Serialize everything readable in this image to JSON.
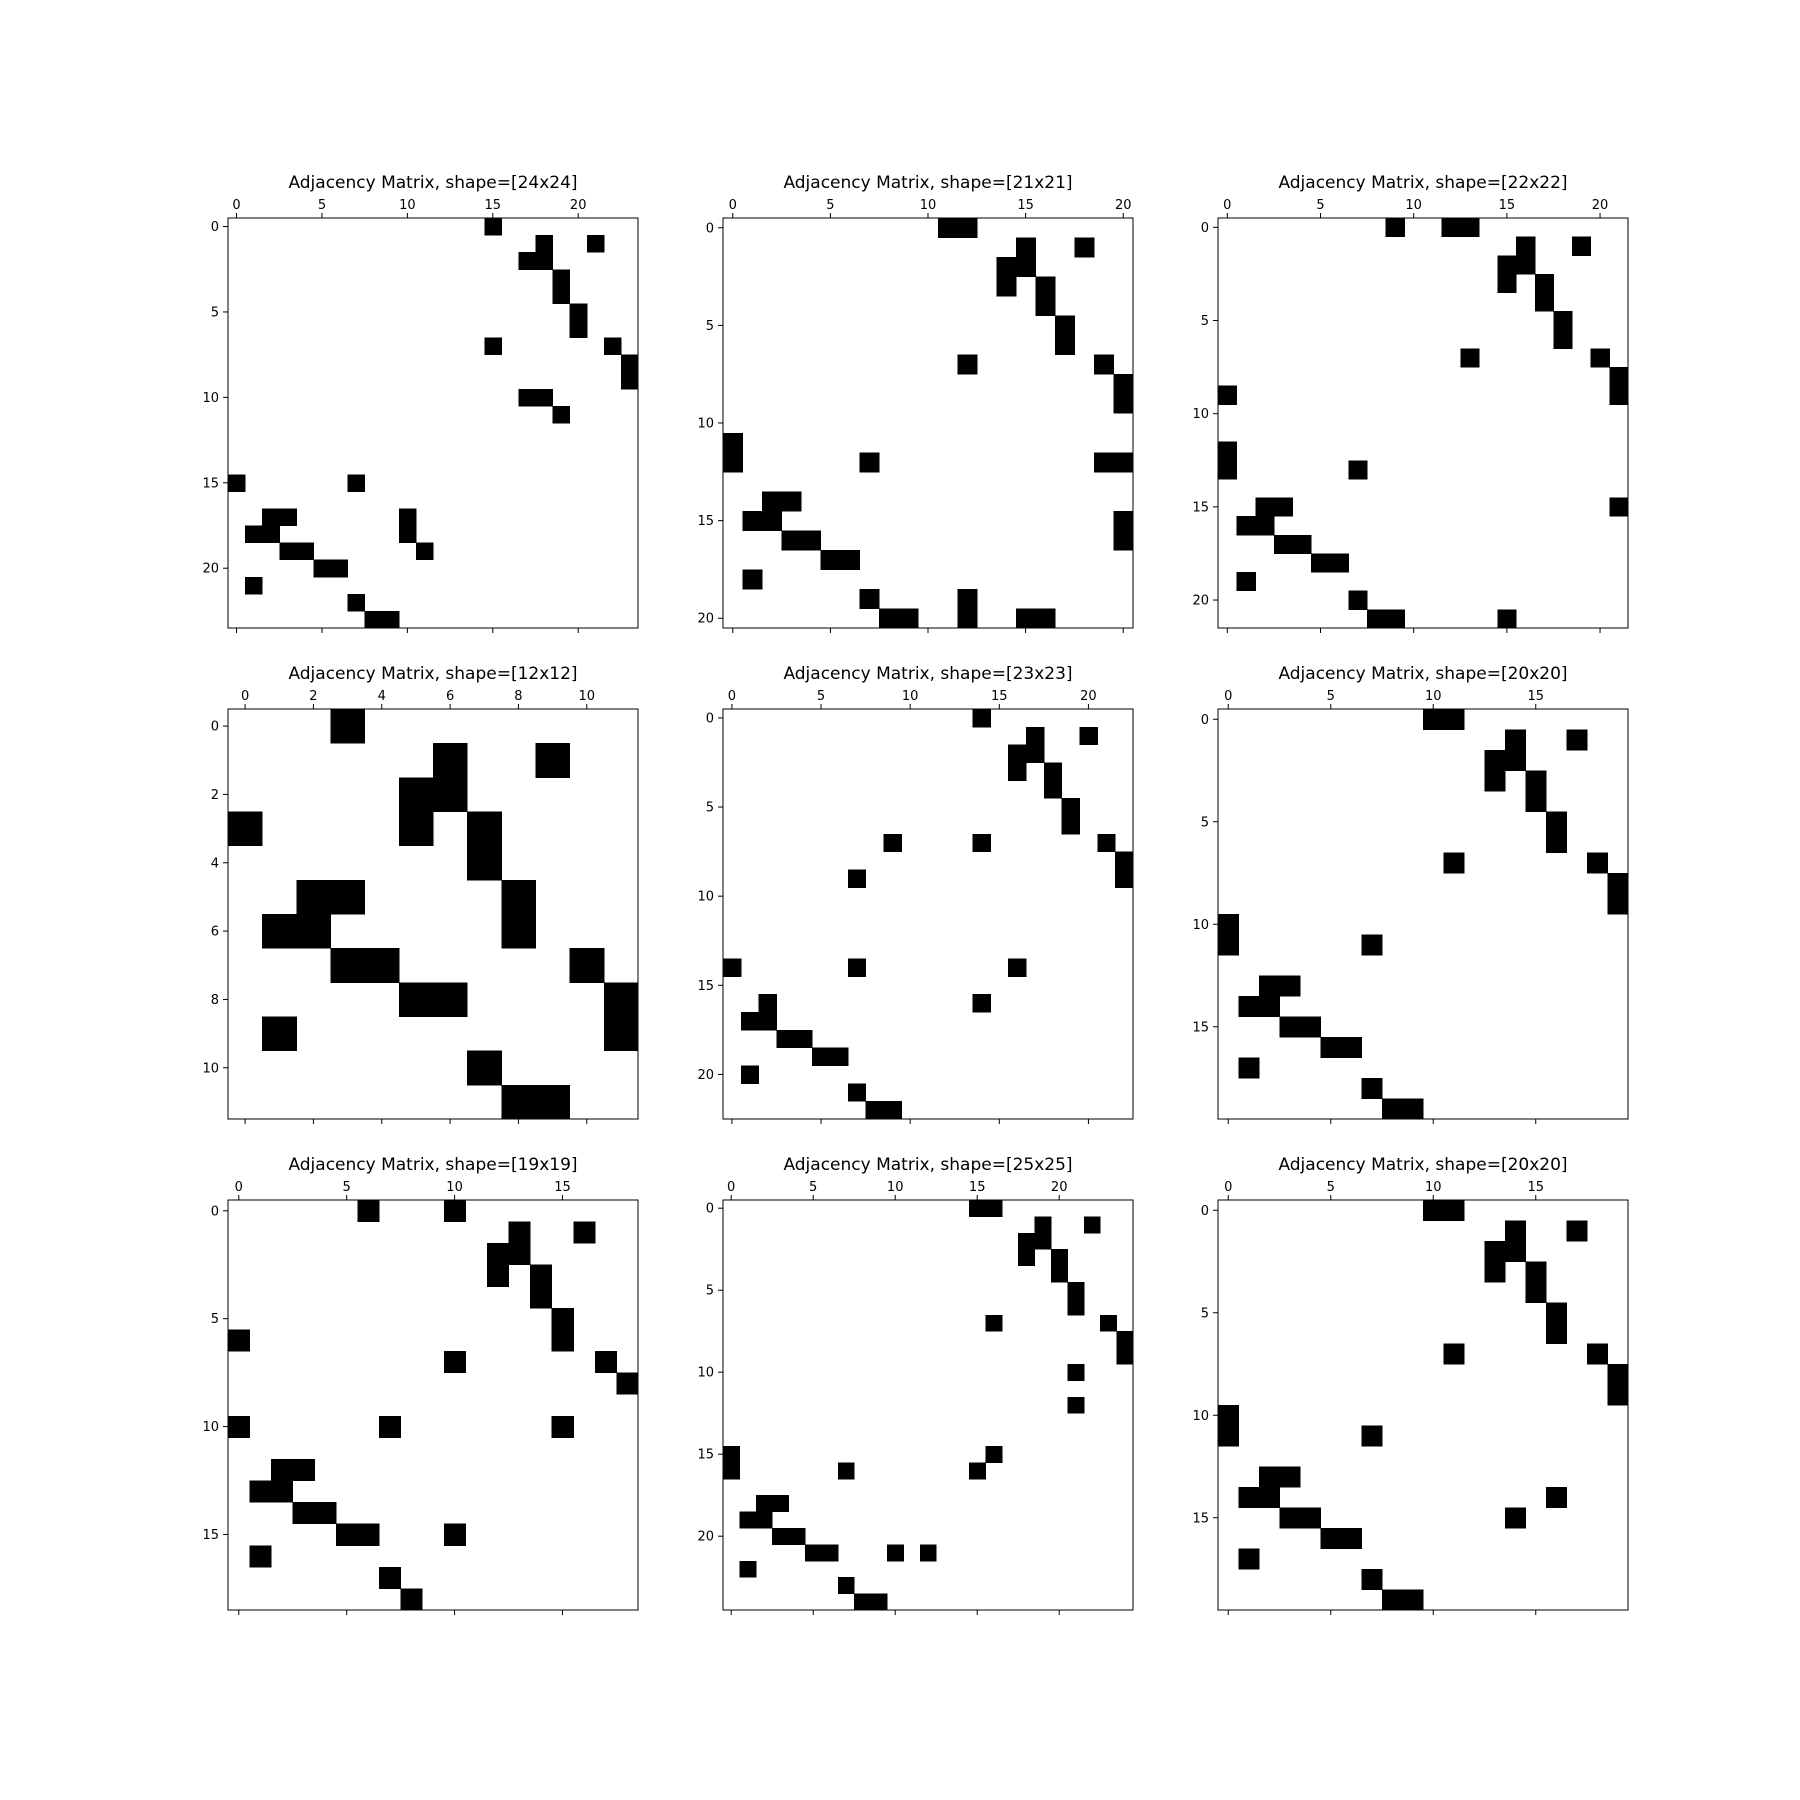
{
  "chart_data": [
    {
      "type": "heatmap",
      "title": "Adjacency Matrix, shape=[24x24]",
      "n": 24,
      "xticks": [
        0,
        5,
        10,
        15,
        20
      ],
      "yticks": [
        0,
        5,
        10,
        15,
        20
      ],
      "colors": {
        "zero": "#ffffff",
        "one": "#000000"
      },
      "cells": [
        [
          0,
          15
        ],
        [
          1,
          18
        ],
        [
          1,
          21
        ],
        [
          2,
          17
        ],
        [
          2,
          18
        ],
        [
          3,
          19
        ],
        [
          4,
          19
        ],
        [
          5,
          20
        ],
        [
          6,
          20
        ],
        [
          7,
          15
        ],
        [
          7,
          22
        ],
        [
          8,
          23
        ],
        [
          9,
          23
        ],
        [
          10,
          17
        ],
        [
          10,
          18
        ],
        [
          11,
          19
        ],
        [
          15,
          0
        ],
        [
          15,
          7
        ],
        [
          17,
          2
        ],
        [
          17,
          3
        ],
        [
          17,
          10
        ],
        [
          18,
          1
        ],
        [
          18,
          2
        ],
        [
          18,
          10
        ],
        [
          19,
          3
        ],
        [
          19,
          4
        ],
        [
          19,
          11
        ],
        [
          20,
          5
        ],
        [
          20,
          6
        ],
        [
          21,
          1
        ],
        [
          22,
          7
        ],
        [
          23,
          8
        ],
        [
          23,
          9
        ]
      ]
    },
    {
      "type": "heatmap",
      "title": "Adjacency Matrix, shape=[21x21]",
      "n": 21,
      "xticks": [
        0,
        5,
        10,
        15,
        20
      ],
      "yticks": [
        0,
        5,
        10,
        15,
        20
      ],
      "colors": {
        "zero": "#ffffff",
        "one": "#000000"
      },
      "cells": [
        [
          0,
          11
        ],
        [
          0,
          12
        ],
        [
          1,
          15
        ],
        [
          1,
          18
        ],
        [
          2,
          14
        ],
        [
          2,
          15
        ],
        [
          3,
          14
        ],
        [
          3,
          16
        ],
        [
          4,
          16
        ],
        [
          5,
          17
        ],
        [
          6,
          17
        ],
        [
          7,
          12
        ],
        [
          7,
          19
        ],
        [
          8,
          20
        ],
        [
          9,
          20
        ],
        [
          11,
          0
        ],
        [
          12,
          0
        ],
        [
          12,
          7
        ],
        [
          12,
          19
        ],
        [
          12,
          20
        ],
        [
          14,
          2
        ],
        [
          14,
          3
        ],
        [
          15,
          1
        ],
        [
          15,
          2
        ],
        [
          15,
          20
        ],
        [
          16,
          3
        ],
        [
          16,
          4
        ],
        [
          16,
          20
        ],
        [
          17,
          5
        ],
        [
          17,
          6
        ],
        [
          18,
          1
        ],
        [
          19,
          7
        ],
        [
          19,
          12
        ],
        [
          20,
          8
        ],
        [
          20,
          9
        ],
        [
          20,
          12
        ],
        [
          20,
          15
        ],
        [
          20,
          16
        ]
      ]
    },
    {
      "type": "heatmap",
      "title": "Adjacency Matrix, shape=[22x22]",
      "n": 22,
      "xticks": [
        0,
        5,
        10,
        15,
        20
      ],
      "yticks": [
        0,
        5,
        10,
        15,
        20
      ],
      "colors": {
        "zero": "#ffffff",
        "one": "#000000"
      },
      "cells": [
        [
          0,
          9
        ],
        [
          0,
          12
        ],
        [
          0,
          13
        ],
        [
          1,
          16
        ],
        [
          1,
          19
        ],
        [
          2,
          15
        ],
        [
          2,
          16
        ],
        [
          3,
          15
        ],
        [
          3,
          17
        ],
        [
          4,
          17
        ],
        [
          5,
          18
        ],
        [
          6,
          18
        ],
        [
          7,
          13
        ],
        [
          7,
          20
        ],
        [
          8,
          21
        ],
        [
          9,
          0
        ],
        [
          9,
          21
        ],
        [
          12,
          0
        ],
        [
          13,
          0
        ],
        [
          13,
          7
        ],
        [
          15,
          2
        ],
        [
          15,
          3
        ],
        [
          15,
          21
        ],
        [
          16,
          1
        ],
        [
          16,
          2
        ],
        [
          17,
          3
        ],
        [
          17,
          4
        ],
        [
          18,
          5
        ],
        [
          18,
          6
        ],
        [
          19,
          1
        ],
        [
          20,
          7
        ],
        [
          21,
          8
        ],
        [
          21,
          9
        ],
        [
          21,
          15
        ]
      ]
    },
    {
      "type": "heatmap",
      "title": "Adjacency Matrix, shape=[12x12]",
      "n": 12,
      "xticks": [
        0,
        2,
        4,
        6,
        8,
        10
      ],
      "yticks": [
        0,
        2,
        4,
        6,
        8,
        10
      ],
      "colors": {
        "zero": "#ffffff",
        "one": "#000000"
      },
      "cells": [
        [
          0,
          3
        ],
        [
          1,
          6
        ],
        [
          1,
          9
        ],
        [
          2,
          5
        ],
        [
          2,
          6
        ],
        [
          3,
          0
        ],
        [
          3,
          5
        ],
        [
          3,
          7
        ],
        [
          4,
          7
        ],
        [
          5,
          2
        ],
        [
          5,
          3
        ],
        [
          5,
          8
        ],
        [
          6,
          1
        ],
        [
          6,
          2
        ],
        [
          6,
          8
        ],
        [
          7,
          3
        ],
        [
          7,
          4
        ],
        [
          7,
          10
        ],
        [
          8,
          5
        ],
        [
          8,
          6
        ],
        [
          8,
          11
        ],
        [
          9,
          1
        ],
        [
          9,
          11
        ],
        [
          10,
          7
        ],
        [
          11,
          8
        ],
        [
          11,
          9
        ]
      ]
    },
    {
      "type": "heatmap",
      "title": "Adjacency Matrix, shape=[23x23]",
      "n": 23,
      "xticks": [
        0,
        5,
        10,
        15,
        20
      ],
      "yticks": [
        0,
        5,
        10,
        15,
        20
      ],
      "colors": {
        "zero": "#ffffff",
        "one": "#000000"
      },
      "cells": [
        [
          0,
          14
        ],
        [
          1,
          17
        ],
        [
          1,
          20
        ],
        [
          2,
          16
        ],
        [
          2,
          17
        ],
        [
          3,
          16
        ],
        [
          3,
          18
        ],
        [
          4,
          18
        ],
        [
          5,
          19
        ],
        [
          6,
          19
        ],
        [
          7,
          9
        ],
        [
          7,
          14
        ],
        [
          7,
          21
        ],
        [
          8,
          22
        ],
        [
          9,
          7
        ],
        [
          9,
          22
        ],
        [
          14,
          0
        ],
        [
          14,
          7
        ],
        [
          14,
          16
        ],
        [
          16,
          2
        ],
        [
          16,
          14
        ],
        [
          17,
          1
        ],
        [
          17,
          2
        ],
        [
          18,
          3
        ],
        [
          18,
          4
        ],
        [
          19,
          5
        ],
        [
          19,
          6
        ],
        [
          20,
          1
        ],
        [
          21,
          7
        ],
        [
          22,
          8
        ],
        [
          22,
          9
        ]
      ]
    },
    {
      "type": "heatmap",
      "title": "Adjacency Matrix, shape=[20x20]",
      "n": 20,
      "xticks": [
        0,
        5,
        10,
        15
      ],
      "yticks": [
        0,
        5,
        10,
        15
      ],
      "colors": {
        "zero": "#ffffff",
        "one": "#000000"
      },
      "cells": [
        [
          0,
          10
        ],
        [
          0,
          11
        ],
        [
          1,
          14
        ],
        [
          1,
          17
        ],
        [
          2,
          13
        ],
        [
          2,
          14
        ],
        [
          3,
          13
        ],
        [
          3,
          15
        ],
        [
          4,
          15
        ],
        [
          5,
          16
        ],
        [
          6,
          16
        ],
        [
          7,
          11
        ],
        [
          7,
          18
        ],
        [
          8,
          19
        ],
        [
          9,
          19
        ],
        [
          10,
          0
        ],
        [
          11,
          0
        ],
        [
          11,
          7
        ],
        [
          13,
          2
        ],
        [
          13,
          3
        ],
        [
          14,
          1
        ],
        [
          14,
          2
        ],
        [
          15,
          3
        ],
        [
          15,
          4
        ],
        [
          16,
          5
        ],
        [
          16,
          6
        ],
        [
          17,
          1
        ],
        [
          18,
          7
        ],
        [
          19,
          8
        ],
        [
          19,
          9
        ]
      ]
    },
    {
      "type": "heatmap",
      "title": "Adjacency Matrix, shape=[19x19]",
      "n": 19,
      "xticks": [
        0,
        5,
        10,
        15
      ],
      "yticks": [
        0,
        5,
        10,
        15
      ],
      "colors": {
        "zero": "#ffffff",
        "one": "#000000"
      },
      "cells": [
        [
          0,
          6
        ],
        [
          0,
          10
        ],
        [
          1,
          13
        ],
        [
          1,
          16
        ],
        [
          2,
          12
        ],
        [
          2,
          13
        ],
        [
          3,
          12
        ],
        [
          3,
          14
        ],
        [
          4,
          14
        ],
        [
          5,
          15
        ],
        [
          6,
          0
        ],
        [
          6,
          15
        ],
        [
          7,
          10
        ],
        [
          7,
          17
        ],
        [
          8,
          18
        ],
        [
          10,
          0
        ],
        [
          10,
          7
        ],
        [
          10,
          15
        ],
        [
          12,
          2
        ],
        [
          12,
          3
        ],
        [
          13,
          1
        ],
        [
          13,
          2
        ],
        [
          14,
          3
        ],
        [
          14,
          4
        ],
        [
          15,
          5
        ],
        [
          15,
          6
        ],
        [
          15,
          10
        ],
        [
          16,
          1
        ],
        [
          17,
          7
        ],
        [
          18,
          8
        ]
      ]
    },
    {
      "type": "heatmap",
      "title": "Adjacency Matrix, shape=[25x25]",
      "n": 25,
      "xticks": [
        0,
        5,
        10,
        15,
        20
      ],
      "yticks": [
        0,
        5,
        10,
        15,
        20
      ],
      "colors": {
        "zero": "#ffffff",
        "one": "#000000"
      },
      "cells": [
        [
          0,
          15
        ],
        [
          0,
          16
        ],
        [
          1,
          19
        ],
        [
          1,
          22
        ],
        [
          2,
          18
        ],
        [
          2,
          19
        ],
        [
          3,
          18
        ],
        [
          3,
          20
        ],
        [
          4,
          20
        ],
        [
          5,
          21
        ],
        [
          6,
          21
        ],
        [
          7,
          16
        ],
        [
          7,
          23
        ],
        [
          8,
          24
        ],
        [
          9,
          24
        ],
        [
          10,
          21
        ],
        [
          12,
          21
        ],
        [
          15,
          0
        ],
        [
          15,
          16
        ],
        [
          16,
          0
        ],
        [
          16,
          7
        ],
        [
          16,
          15
        ],
        [
          18,
          2
        ],
        [
          18,
          3
        ],
        [
          19,
          1
        ],
        [
          19,
          2
        ],
        [
          20,
          3
        ],
        [
          20,
          4
        ],
        [
          21,
          5
        ],
        [
          21,
          6
        ],
        [
          21,
          10
        ],
        [
          21,
          12
        ],
        [
          22,
          1
        ],
        [
          23,
          7
        ],
        [
          24,
          8
        ],
        [
          24,
          9
        ]
      ]
    },
    {
      "type": "heatmap",
      "title": "Adjacency Matrix, shape=[20x20]",
      "n": 20,
      "xticks": [
        0,
        5,
        10,
        15
      ],
      "yticks": [
        0,
        5,
        10,
        15
      ],
      "colors": {
        "zero": "#ffffff",
        "one": "#000000"
      },
      "cells": [
        [
          0,
          10
        ],
        [
          0,
          11
        ],
        [
          1,
          14
        ],
        [
          1,
          17
        ],
        [
          2,
          13
        ],
        [
          2,
          14
        ],
        [
          3,
          13
        ],
        [
          3,
          15
        ],
        [
          4,
          15
        ],
        [
          5,
          16
        ],
        [
          6,
          16
        ],
        [
          7,
          11
        ],
        [
          7,
          18
        ],
        [
          8,
          19
        ],
        [
          9,
          19
        ],
        [
          10,
          0
        ],
        [
          11,
          0
        ],
        [
          11,
          7
        ],
        [
          13,
          2
        ],
        [
          13,
          3
        ],
        [
          14,
          1
        ],
        [
          14,
          2
        ],
        [
          14,
          16
        ],
        [
          15,
          3
        ],
        [
          15,
          4
        ],
        [
          15,
          14
        ],
        [
          16,
          5
        ],
        [
          16,
          6
        ],
        [
          17,
          1
        ],
        [
          18,
          7
        ],
        [
          19,
          8
        ],
        [
          19,
          9
        ]
      ]
    }
  ]
}
